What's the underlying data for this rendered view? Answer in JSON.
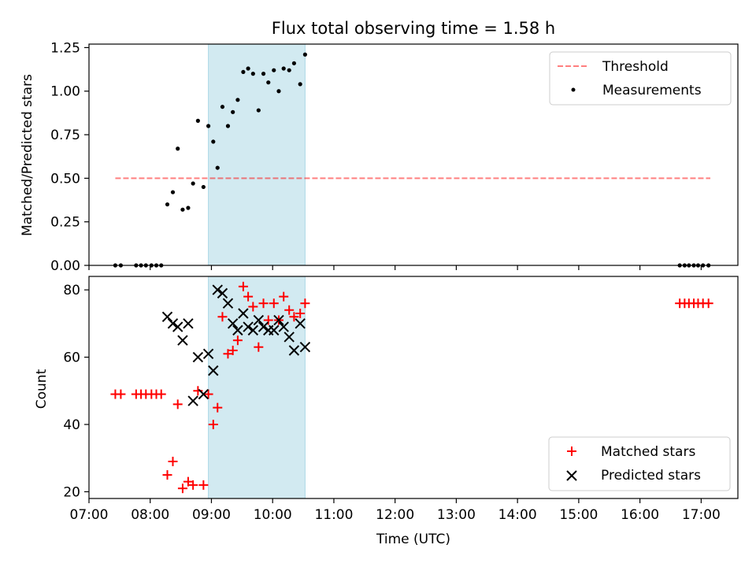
{
  "colors": {
    "shade": "#add8e6",
    "threshold": "#ff0000",
    "measurement": "#000000",
    "matched": "#ff0000",
    "predicted": "#000000"
  },
  "chart_data": [
    {
      "type": "scatter",
      "title": "Flux total observing time = 1.58 h",
      "xlabel": "",
      "ylabel": "Matched/Predicted stars",
      "xlim": [
        7.0,
        17.6
      ],
      "ylim": [
        0,
        1.27
      ],
      "yticks": [
        0.0,
        0.25,
        0.5,
        0.75,
        1.0,
        1.25
      ],
      "ytick_labels": [
        "0.00",
        "0.25",
        "0.50",
        "0.75",
        "1.00",
        "1.25"
      ],
      "shaded_span": [
        8.95,
        10.53
      ],
      "threshold": {
        "label": "Threshold",
        "value": 0.5,
        "x_range": [
          7.43,
          17.15
        ]
      },
      "legend": {
        "position": "top-right",
        "entries": [
          "Threshold",
          "Measurements"
        ]
      },
      "series": [
        {
          "name": "Measurements",
          "points": [
            [
              7.43,
              0
            ],
            [
              7.52,
              0
            ],
            [
              7.77,
              0
            ],
            [
              7.85,
              0
            ],
            [
              7.93,
              0
            ],
            [
              8.02,
              0
            ],
            [
              8.1,
              0
            ],
            [
              8.18,
              0
            ],
            [
              8.28,
              0.35
            ],
            [
              8.37,
              0.42
            ],
            [
              8.45,
              0.67
            ],
            [
              8.53,
              0.32
            ],
            [
              8.62,
              0.33
            ],
            [
              8.7,
              0.47
            ],
            [
              8.78,
              0.83
            ],
            [
              8.87,
              0.45
            ],
            [
              8.95,
              0.8
            ],
            [
              9.03,
              0.71
            ],
            [
              9.1,
              0.56
            ],
            [
              9.18,
              0.91
            ],
            [
              9.27,
              0.8
            ],
            [
              9.35,
              0.88
            ],
            [
              9.43,
              0.95
            ],
            [
              9.52,
              1.11
            ],
            [
              9.6,
              1.13
            ],
            [
              9.68,
              1.1
            ],
            [
              9.77,
              0.89
            ],
            [
              9.85,
              1.1
            ],
            [
              9.93,
              1.05
            ],
            [
              10.02,
              1.12
            ],
            [
              10.1,
              1.0
            ],
            [
              10.18,
              1.13
            ],
            [
              10.27,
              1.12
            ],
            [
              10.35,
              1.16
            ],
            [
              10.45,
              1.04
            ],
            [
              10.53,
              1.21
            ],
            [
              16.65,
              0
            ],
            [
              16.73,
              0
            ],
            [
              16.8,
              0
            ],
            [
              16.88,
              0
            ],
            [
              16.95,
              0
            ],
            [
              17.03,
              0
            ],
            [
              17.12,
              0
            ]
          ]
        }
      ]
    },
    {
      "type": "scatter",
      "title": "",
      "xlabel": "Time (UTC)",
      "ylabel": "Count",
      "xlim": [
        7.0,
        17.6
      ],
      "ylim": [
        18,
        84
      ],
      "yticks": [
        20,
        40,
        60,
        80
      ],
      "ytick_labels": [
        "20",
        "40",
        "60",
        "80"
      ],
      "xticks": [
        7,
        8,
        9,
        10,
        11,
        12,
        13,
        14,
        15,
        16,
        17
      ],
      "xtick_labels": [
        "07:00",
        "08:00",
        "09:00",
        "10:00",
        "11:00",
        "12:00",
        "13:00",
        "14:00",
        "15:00",
        "16:00",
        "17:00"
      ],
      "shaded_span": [
        8.95,
        10.53
      ],
      "legend": {
        "position": "bottom-right",
        "entries": [
          "Matched stars",
          "Predicted stars"
        ]
      },
      "series": [
        {
          "name": "Matched stars",
          "marker": "plus",
          "points": [
            [
              7.43,
              49
            ],
            [
              7.52,
              49
            ],
            [
              7.77,
              49
            ],
            [
              7.85,
              49
            ],
            [
              7.93,
              49
            ],
            [
              8.02,
              49
            ],
            [
              8.1,
              49
            ],
            [
              8.18,
              49
            ],
            [
              8.28,
              25
            ],
            [
              8.37,
              29
            ],
            [
              8.45,
              46
            ],
            [
              8.53,
              21
            ],
            [
              8.62,
              23
            ],
            [
              8.7,
              22
            ],
            [
              8.78,
              50
            ],
            [
              8.87,
              22
            ],
            [
              8.95,
              49
            ],
            [
              9.03,
              40
            ],
            [
              9.1,
              45
            ],
            [
              9.18,
              72
            ],
            [
              9.27,
              61
            ],
            [
              9.35,
              62
            ],
            [
              9.43,
              65
            ],
            [
              9.52,
              81
            ],
            [
              9.6,
              78
            ],
            [
              9.68,
              75
            ],
            [
              9.77,
              63
            ],
            [
              9.85,
              76
            ],
            [
              9.93,
              71
            ],
            [
              10.02,
              76
            ],
            [
              10.1,
              71
            ],
            [
              10.18,
              78
            ],
            [
              10.27,
              74
            ],
            [
              10.35,
              72
            ],
            [
              10.45,
              73
            ],
            [
              10.53,
              76
            ],
            [
              16.65,
              76
            ],
            [
              16.73,
              76
            ],
            [
              16.8,
              76
            ],
            [
              16.88,
              76
            ],
            [
              16.95,
              76
            ],
            [
              17.03,
              76
            ],
            [
              17.12,
              76
            ]
          ]
        },
        {
          "name": "Predicted stars",
          "marker": "x",
          "points": [
            [
              8.28,
              72
            ],
            [
              8.37,
              70
            ],
            [
              8.45,
              69
            ],
            [
              8.53,
              65
            ],
            [
              8.62,
              70
            ],
            [
              8.7,
              47
            ],
            [
              8.78,
              60
            ],
            [
              8.87,
              49
            ],
            [
              8.95,
              61
            ],
            [
              9.03,
              56
            ],
            [
              9.1,
              80
            ],
            [
              9.18,
              79
            ],
            [
              9.27,
              76
            ],
            [
              9.35,
              70
            ],
            [
              9.43,
              68
            ],
            [
              9.52,
              73
            ],
            [
              9.6,
              69
            ],
            [
              9.68,
              68
            ],
            [
              9.77,
              71
            ],
            [
              9.85,
              69
            ],
            [
              9.93,
              68
            ],
            [
              10.02,
              68
            ],
            [
              10.1,
              71
            ],
            [
              10.18,
              69
            ],
            [
              10.27,
              66
            ],
            [
              10.35,
              62
            ],
            [
              10.45,
              70
            ],
            [
              10.53,
              63
            ]
          ]
        }
      ]
    }
  ]
}
